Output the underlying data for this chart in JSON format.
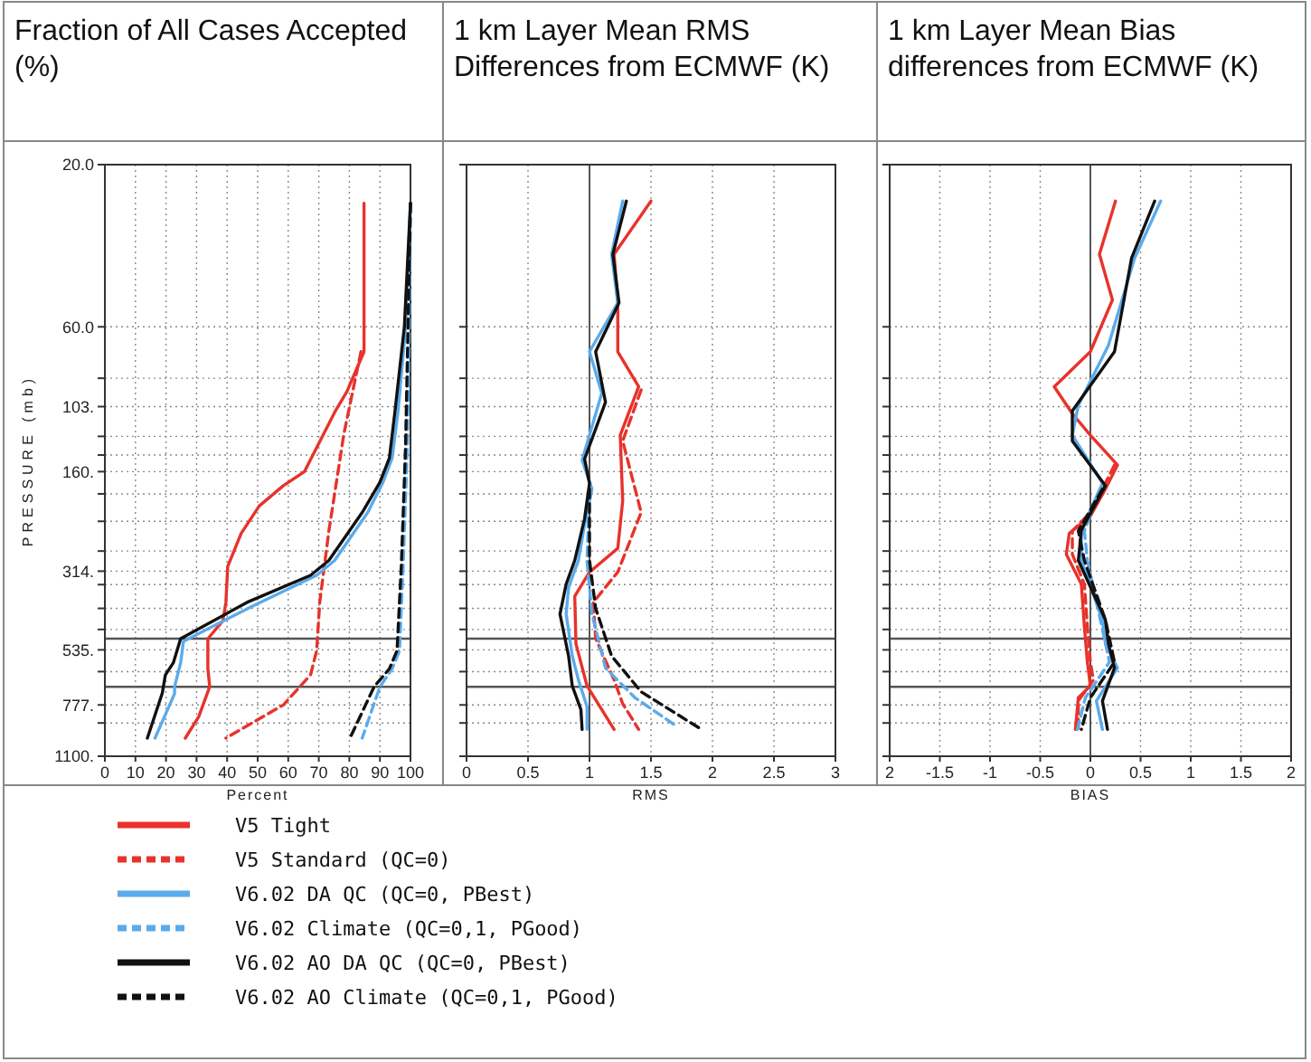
{
  "chart_data": [
    {
      "type": "line",
      "title": "Fraction of All Cases Accepted (%)",
      "xlabel": "Percent",
      "ylabel": "PRESSURE (mb)",
      "log": "y",
      "grid": true,
      "legend": "bottom",
      "xlim": [
        0,
        100
      ],
      "xticks": [
        0,
        10,
        20,
        30,
        40,
        50,
        60,
        70,
        80,
        90,
        100
      ],
      "ylim": [
        1100,
        20
      ],
      "yticks": [
        {
          "value": 20,
          "label": "20.0"
        },
        {
          "value": 60,
          "label": "60.0"
        },
        {
          "value": 85,
          "label": null
        },
        {
          "value": 103,
          "label": "103."
        },
        {
          "value": 126,
          "label": null
        },
        {
          "value": 143,
          "label": null
        },
        {
          "value": 160,
          "label": "160."
        },
        {
          "value": 186,
          "label": null
        },
        {
          "value": 224,
          "label": null
        },
        {
          "value": 274,
          "label": null
        },
        {
          "value": 314,
          "label": "314."
        },
        {
          "value": 344,
          "label": null
        },
        {
          "value": 404,
          "label": null
        },
        {
          "value": 466,
          "label": null
        },
        {
          "value": 535,
          "label": "535."
        },
        {
          "value": 620,
          "label": null
        },
        {
          "value": 777,
          "label": "777."
        },
        {
          "value": 878,
          "label": null
        },
        {
          "value": 1100,
          "label": "1100."
        }
      ],
      "ref_lines": [
        {
          "axis": "y",
          "value": 496,
          "color": "#555555"
        },
        {
          "axis": "y",
          "value": 687,
          "color": "#555555"
        }
      ],
      "series": [
        {
          "name": "V5 Tight",
          "color": "#e8322b",
          "line_style": "solid",
          "x": [
            84.8,
            84.8,
            79.2,
            75.2,
            65.3,
            58.4,
            50.5,
            44.6,
            40.2,
            39.6,
            38.6,
            33.7,
            33.7,
            34.3,
            30.7,
            26.3
          ],
          "values": [
            26,
            71,
            93,
            107,
            160,
            176,
            202,
            243,
            304,
            388,
            440,
            496,
            608,
            687,
            842,
            973
          ]
        },
        {
          "name": "V5 Standard (QC=0)",
          "color": "#e8322b",
          "line_style": "dashed",
          "x": [
            83.8,
            78.2,
            73.3,
            70.3,
            69.3,
            67.3,
            58.4,
            39.6
          ],
          "values": [
            71,
            124,
            239,
            388,
            538,
            634,
            777,
            973
          ]
        },
        {
          "name": "V6.02 DA QC (QC=0, PBest)",
          "color": "#5aabec",
          "line_style": "solid",
          "x": [
            100,
            98.4,
            96,
            94,
            91,
            86,
            75.2,
            69.3,
            48.5,
            25.7,
            24.8,
            22.8,
            22.8,
            16.4
          ],
          "values": [
            26,
            60,
            105,
            146,
            172,
            211,
            292,
            323,
            397,
            505,
            584,
            687,
            720,
            973
          ]
        },
        {
          "name": "V6.02 Climate (QC=0,1, PGood)",
          "color": "#5aabec",
          "line_style": "dashed",
          "x": [
            100,
            99.6,
            99,
            97.6,
            96.4,
            94,
            90,
            84.2
          ],
          "values": [
            26,
            60,
            134,
            304,
            538,
            608,
            687,
            973
          ]
        },
        {
          "name": "V6.02 AO DA QC (QC=0, PBest)",
          "color": "#111111",
          "line_style": "solid",
          "x": [
            100,
            98,
            95,
            93.1,
            90,
            84.2,
            73.3,
            67.3,
            46.5,
            24.8,
            22.4,
            19.8,
            18.8,
            13.9
          ],
          "values": [
            26,
            60,
            105,
            146,
            172,
            211,
            292,
            323,
            388,
            496,
            584,
            634,
            716,
            973
          ]
        },
        {
          "name": "V6.02 AO Climate (QC=0,1, PGood)",
          "color": "#111111",
          "line_style": "dashed",
          "x": [
            100,
            99.2,
            98.4,
            97,
            95.6,
            93.1,
            88.1,
            80.2
          ],
          "values": [
            26,
            60,
            134,
            304,
            538,
            608,
            687,
            973
          ]
        }
      ]
    },
    {
      "type": "line",
      "title": "1 km Layer Mean RMS Differences from ECMWF (K)",
      "xlabel": "RMS",
      "log": "y",
      "grid": true,
      "tick_labels": "x",
      "xlim": [
        0,
        3
      ],
      "xticks": [
        0,
        0.5,
        1,
        1.5,
        2,
        2.5,
        3
      ],
      "ylim": [
        1100,
        20
      ],
      "yticks": [
        {
          "value": 20,
          "label": null
        },
        {
          "value": 60,
          "label": null
        },
        {
          "value": 85,
          "label": null
        },
        {
          "value": 103,
          "label": null
        },
        {
          "value": 126,
          "label": null
        },
        {
          "value": 143,
          "label": null
        },
        {
          "value": 160,
          "label": null
        },
        {
          "value": 186,
          "label": null
        },
        {
          "value": 224,
          "label": null
        },
        {
          "value": 274,
          "label": null
        },
        {
          "value": 314,
          "label": null
        },
        {
          "value": 344,
          "label": null
        },
        {
          "value": 404,
          "label": null
        },
        {
          "value": 466,
          "label": null
        },
        {
          "value": 535,
          "label": null
        },
        {
          "value": 620,
          "label": null
        },
        {
          "value": 777,
          "label": null
        },
        {
          "value": 878,
          "label": null
        },
        {
          "value": 1100,
          "label": null
        }
      ],
      "ref_lines": [
        {
          "axis": "y",
          "value": 496,
          "color": "#555555"
        },
        {
          "axis": "y",
          "value": 687,
          "color": "#555555"
        },
        {
          "axis": "x",
          "value": 1,
          "color": "#555555"
        }
      ],
      "series": [
        {
          "color": "#e8322b",
          "line_style": "solid",
          "x": [
            1.5,
            1.2,
            1.23,
            1.23,
            1.4,
            1.25,
            1.27,
            1.23,
            1.0,
            0.88,
            0.89,
            0.98,
            1.2
          ],
          "values": [
            25.6,
            36.7,
            51,
            71,
            90,
            125,
            195,
            269,
            316,
            372,
            514,
            683,
            917
          ]
        },
        {
          "color": "#e8322b",
          "line_style": "dashed",
          "x": [
            1.42,
            1.27,
            1.42,
            1.23,
            1.03,
            1.05,
            1.2,
            1.27,
            1.4
          ],
          "values": [
            92,
            130,
            211,
            316,
            388,
            495,
            656,
            771,
            917
          ]
        },
        {
          "color": "#5aabec",
          "line_style": "solid",
          "x": [
            1.27,
            1.18,
            1.23,
            1.0,
            1.1,
            0.94,
            1.02,
            0.96,
            0.91,
            0.83,
            0.81,
            0.86,
            0.91,
            0.98,
            0.98
          ],
          "values": [
            25.6,
            36.7,
            51,
            71,
            94,
            148,
            180,
            229,
            292,
            350,
            420,
            558,
            656,
            787,
            917
          ]
        },
        {
          "color": "#5aabec",
          "line_style": "dashed",
          "x": [
            1.0,
            0.98,
            1.02,
            1.13,
            1.37,
            1.69
          ],
          "values": [
            180,
            292,
            420,
            605,
            740,
            888
          ]
        },
        {
          "color": "#111111",
          "line_style": "solid",
          "x": [
            1.3,
            1.19,
            1.24,
            1.05,
            1.13,
            0.96,
            1.0,
            0.96,
            0.88,
            0.81,
            0.76,
            0.83,
            0.86,
            0.93,
            0.94
          ],
          "values": [
            25.6,
            36.7,
            51,
            71,
            100,
            147,
            173,
            220,
            292,
            343,
            420,
            558,
            683,
            802,
            917
          ]
        },
        {
          "color": "#111111",
          "line_style": "dashed",
          "x": [
            1.0,
            1.0,
            1.05,
            1.18,
            1.42,
            1.91
          ],
          "values": [
            180,
            292,
            404,
            558,
            711,
            917
          ]
        }
      ]
    },
    {
      "type": "line",
      "title": "1 km Layer Mean Bias differences from ECMWF (K)",
      "xlabel": "BIAS",
      "log": "y",
      "grid": true,
      "tick_labels": "x",
      "xlim": [
        -2,
        2
      ],
      "xticks": [
        {
          "value": -2,
          "label": "2"
        },
        -1.5,
        -1,
        -0.5,
        0,
        0.5,
        1,
        1.5,
        2
      ],
      "ylim": [
        1100,
        20
      ],
      "yticks": [
        {
          "value": 20,
          "label": null
        },
        {
          "value": 60,
          "label": null
        },
        {
          "value": 85,
          "label": null
        },
        {
          "value": 103,
          "label": null
        },
        {
          "value": 126,
          "label": null
        },
        {
          "value": 143,
          "label": null
        },
        {
          "value": 160,
          "label": null
        },
        {
          "value": 186,
          "label": null
        },
        {
          "value": 224,
          "label": null
        },
        {
          "value": 274,
          "label": null
        },
        {
          "value": 314,
          "label": null
        },
        {
          "value": 344,
          "label": null
        },
        {
          "value": 404,
          "label": null
        },
        {
          "value": 466,
          "label": null
        },
        {
          "value": 535,
          "label": null
        },
        {
          "value": 620,
          "label": null
        },
        {
          "value": 777,
          "label": null
        },
        {
          "value": 878,
          "label": null
        },
        {
          "value": 1100,
          "label": null
        }
      ],
      "ref_lines": [
        {
          "axis": "y",
          "value": 496,
          "color": "#555555"
        },
        {
          "axis": "y",
          "value": 687,
          "color": "#555555"
        },
        {
          "axis": "x",
          "value": 0,
          "color": "#555555"
        }
      ],
      "series": [
        {
          "color": "#e8322b",
          "line_style": "solid",
          "x": [
            0.25,
            0.09,
            0.22,
            0,
            -0.36,
            -0.18,
            0,
            0.27,
            0.15,
            0,
            -0.21,
            -0.24,
            -0.09,
            -0.06,
            -0.03,
            0,
            -0.12,
            -0.15
          ],
          "values": [
            25.6,
            36.7,
            50,
            71,
            90,
            108,
            125,
            153,
            180,
            216,
            243,
            280,
            343,
            456,
            581,
            683,
            740,
            917
          ]
        },
        {
          "color": "#e8322b",
          "line_style": "dashed",
          "x": [
            0.24,
            0.12,
            0,
            -0.18,
            -0.18,
            -0.06,
            -0.03,
            0,
            0.03,
            -0.12,
            -0.12
          ],
          "values": [
            153,
            180,
            211,
            239,
            280,
            343,
            456,
            581,
            656,
            756,
            917
          ]
        },
        {
          "color": "#5aabec",
          "line_style": "solid",
          "x": [
            0.7,
            0.44,
            0.18,
            -0.12,
            -0.18,
            0.12,
            -0.09,
            -0.09,
            0.12,
            0.15,
            0.27,
            0.06,
            0.12
          ],
          "values": [
            25.6,
            37.7,
            68,
            102,
            125,
            173,
            238,
            292,
            437,
            514,
            605,
            756,
            917
          ]
        },
        {
          "color": "#5aabec",
          "line_style": "dashed",
          "x": [
            0.1,
            -0.06,
            -0.03,
            0.1,
            0.19,
            -0.05,
            -0.13
          ],
          "values": [
            180,
            239,
            292,
            437,
            581,
            740,
            917
          ]
        },
        {
          "color": "#111111",
          "line_style": "solid",
          "x": [
            0.64,
            0.41,
            0.24,
            -0.18,
            -0.18,
            0.15,
            -0.09,
            -0.12,
            0.15,
            0.18,
            0.24,
            0.12,
            0.17
          ],
          "values": [
            25.6,
            37.7,
            71,
            106,
            130,
            176,
            238,
            292,
            437,
            514,
            605,
            756,
            917
          ]
        },
        {
          "color": "#111111",
          "line_style": "dashed",
          "x": [
            0.12,
            -0.12,
            -0.06,
            0.15,
            0.24,
            0,
            -0.09
          ],
          "values": [
            180,
            239,
            292,
            437,
            581,
            740,
            917
          ]
        }
      ]
    }
  ]
}
